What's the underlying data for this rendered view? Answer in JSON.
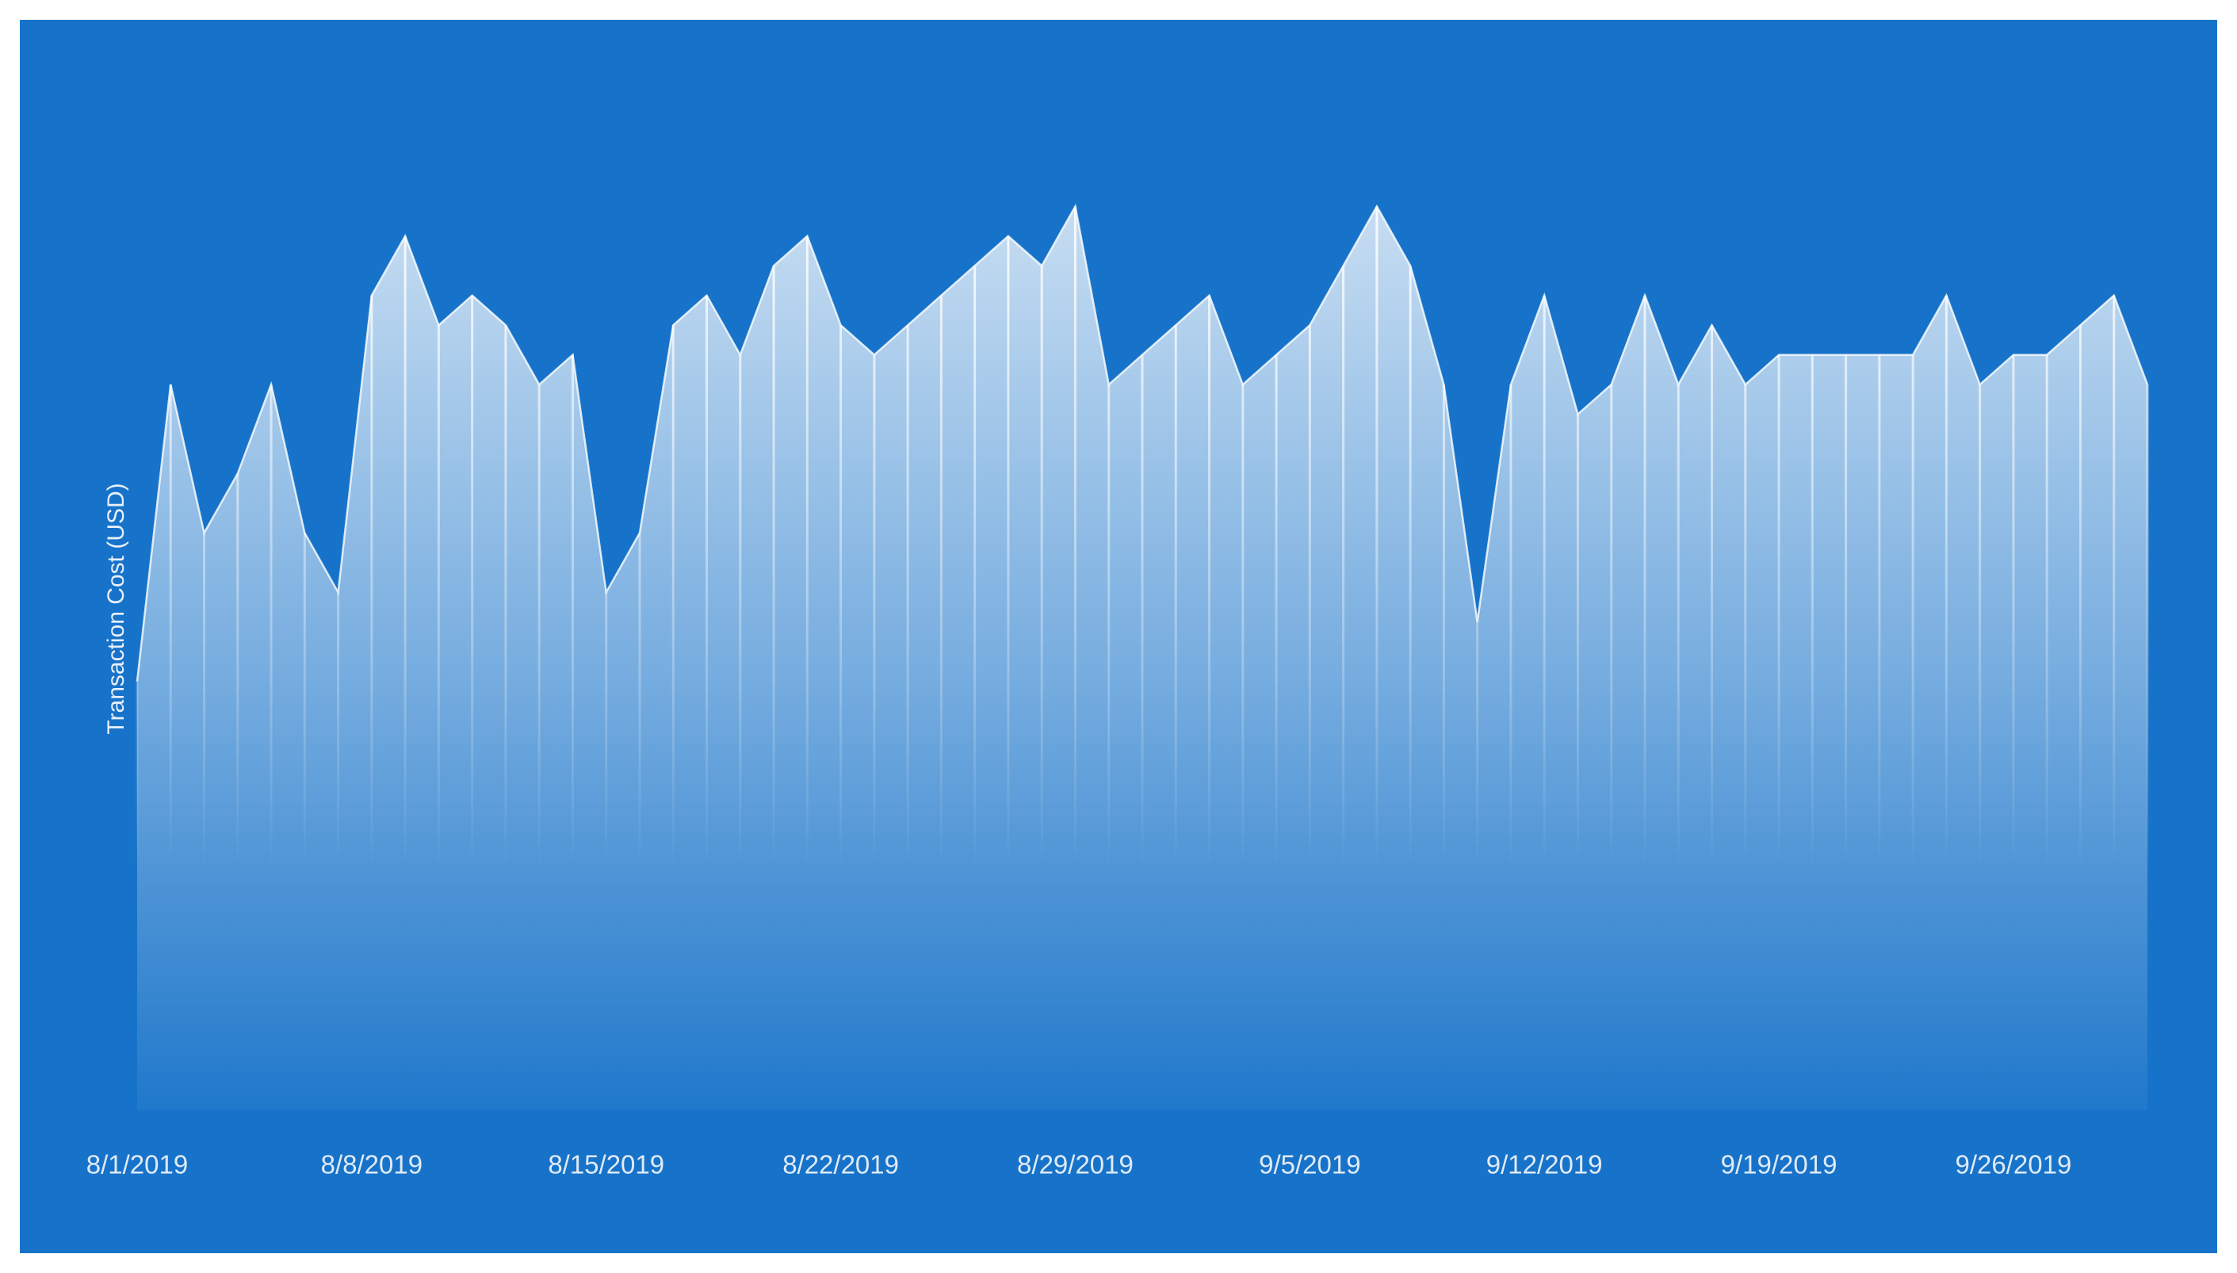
{
  "chart_data": {
    "type": "area",
    "y_label": "Transaction Cost (USD)",
    "x": [
      "8/1/2019",
      "8/2/2019",
      "8/3/2019",
      "8/4/2019",
      "8/5/2019",
      "8/6/2019",
      "8/7/2019",
      "8/8/2019",
      "8/9/2019",
      "8/10/2019",
      "8/11/2019",
      "8/12/2019",
      "8/13/2019",
      "8/14/2019",
      "8/15/2019",
      "8/16/2019",
      "8/17/2019",
      "8/18/2019",
      "8/19/2019",
      "8/20/2019",
      "8/21/2019",
      "8/22/2019",
      "8/23/2019",
      "8/24/2019",
      "8/25/2019",
      "8/26/2019",
      "8/27/2019",
      "8/28/2019",
      "8/29/2019",
      "8/30/2019",
      "8/31/2019",
      "9/1/2019",
      "9/2/2019",
      "9/3/2019",
      "9/4/2019",
      "9/5/2019",
      "9/6/2019",
      "9/7/2019",
      "9/8/2019",
      "9/9/2019",
      "9/10/2019",
      "9/11/2019",
      "9/12/2019",
      "9/13/2019",
      "9/14/2019",
      "9/15/2019",
      "9/16/2019",
      "9/17/2019",
      "9/18/2019",
      "9/19/2019",
      "9/20/2019",
      "9/21/2019",
      "9/22/2019",
      "9/23/2019",
      "9/24/2019",
      "9/25/2019",
      "9/26/2019",
      "9/27/2019",
      "9/28/2019",
      "9/29/2019",
      "9/30/2019"
    ],
    "values": [
      14,
      24,
      19,
      21,
      24,
      19,
      17,
      27,
      29,
      26,
      27,
      26,
      24,
      25,
      17,
      19,
      26,
      27,
      25,
      28,
      29,
      26,
      25,
      26,
      27,
      28,
      29,
      28,
      30,
      24,
      25,
      26,
      27,
      24,
      25,
      26,
      28,
      30,
      28,
      24,
      16,
      24,
      27,
      23,
      24,
      27,
      24,
      26,
      24,
      25,
      25,
      25,
      25,
      25,
      27,
      24,
      25,
      25,
      26,
      27,
      24
    ],
    "xticks": [
      "8/1/2019",
      "8/8/2019",
      "8/15/2019",
      "8/22/2019",
      "8/29/2019",
      "9/5/2019",
      "9/12/2019",
      "9/19/2019",
      "9/26/2019"
    ],
    "ylim": [
      0,
      31
    ],
    "color": "#ffffff",
    "background": "#1773c9"
  }
}
